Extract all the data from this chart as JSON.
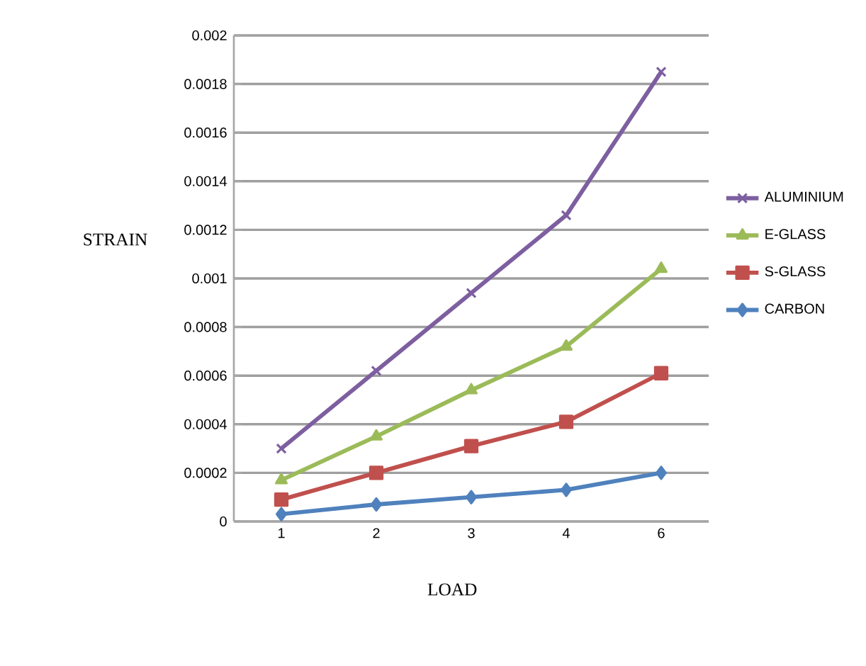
{
  "chart_data": {
    "type": "line",
    "xlabel": "LOAD",
    "ylabel": "STRAIN",
    "categories": [
      "1",
      "2",
      "3",
      "4",
      "6"
    ],
    "series": [
      {
        "name": "ALUMINIUM",
        "color": "#7d5fa0",
        "marker": "cross",
        "values": [
          0.0003,
          0.00062,
          0.00094,
          0.00126,
          0.00185
        ]
      },
      {
        "name": "E-GLASS",
        "color": "#9bbb59",
        "marker": "triangle",
        "values": [
          0.00017,
          0.00035,
          0.00054,
          0.00072,
          0.00104
        ]
      },
      {
        "name": "S-GLASS",
        "color": "#c0504d",
        "marker": "square",
        "values": [
          9e-05,
          0.0002,
          0.00031,
          0.00041,
          0.00061
        ]
      },
      {
        "name": "CARBON",
        "color": "#4f81bd",
        "marker": "diamond",
        "values": [
          3e-05,
          7e-05,
          0.0001,
          0.00013,
          0.0002
        ]
      }
    ],
    "ylim": [
      0,
      0.002
    ],
    "yticks": [
      0,
      0.0002,
      0.0004,
      0.0006,
      0.0008,
      0.001,
      0.0012,
      0.0014,
      0.0016,
      0.0018,
      0.002
    ],
    "grid": "y",
    "legend": "right",
    "line_style": "solid"
  }
}
